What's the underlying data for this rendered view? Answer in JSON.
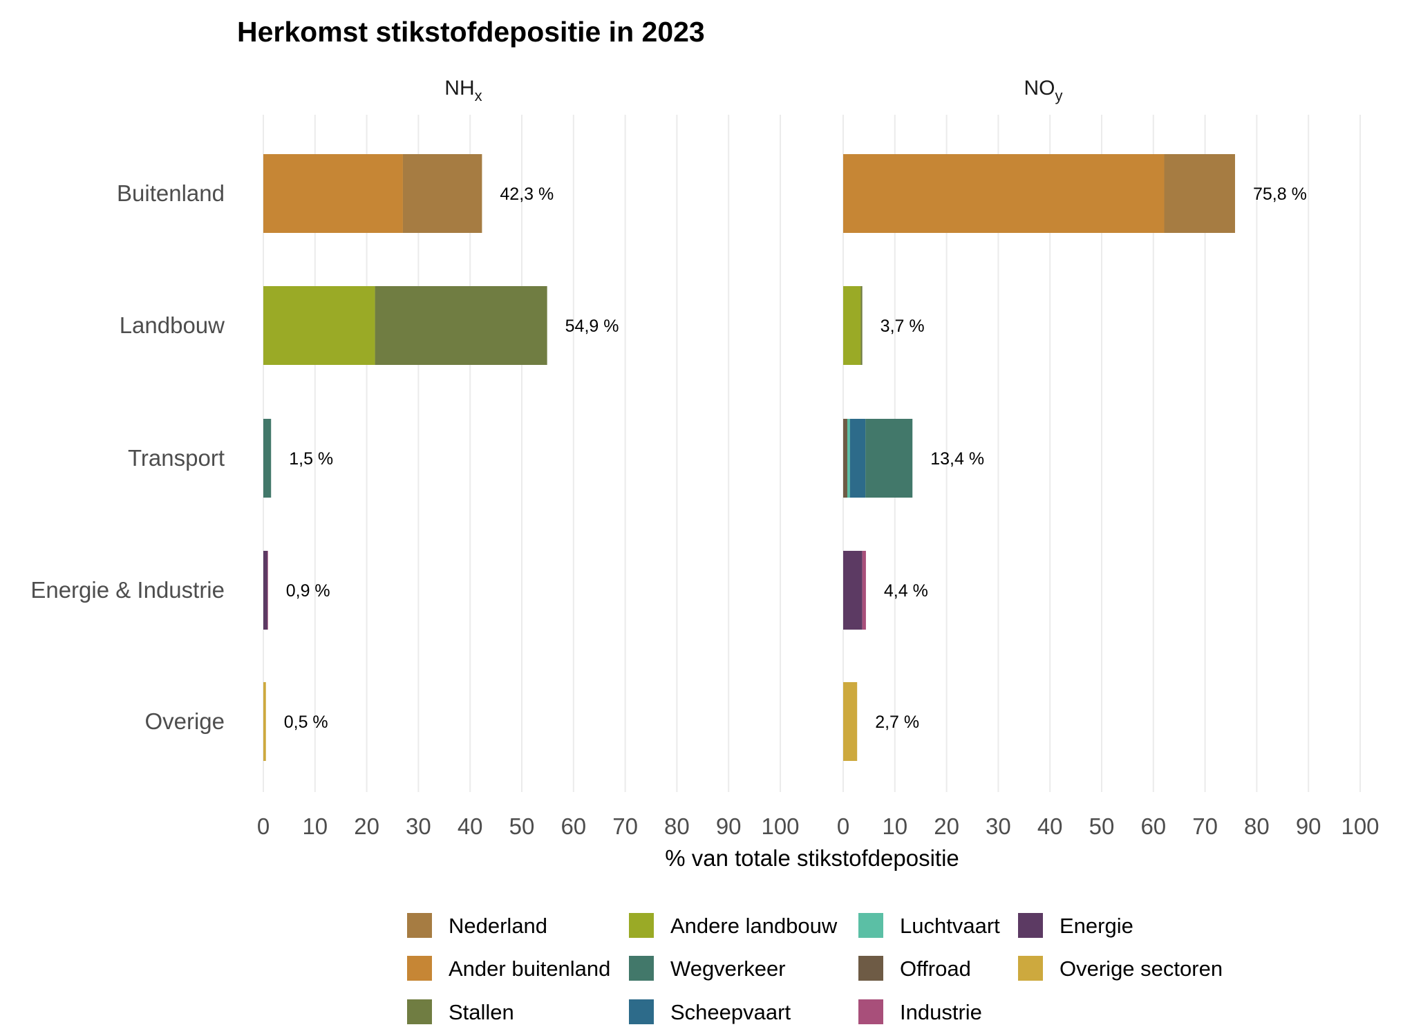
{
  "chart_data": {
    "type": "bar",
    "orientation": "horizontal",
    "stacked": true,
    "title": "Herkomst stikstofdepositie in 2023",
    "xlabel": "% van totale stikstofdepositie",
    "xlim": [
      0,
      100
    ],
    "xticks": [
      "0",
      "10",
      "20",
      "30",
      "40",
      "50",
      "60",
      "70",
      "80",
      "90",
      "100"
    ],
    "grid": true,
    "legend_placement": "bottom",
    "categories": [
      "Buitenland",
      "Landbouw",
      "Transport",
      "Energie & Industrie",
      "Overige"
    ],
    "legend": [
      {
        "name": "Nederland",
        "color": "#A67C42"
      },
      {
        "name": "Ander buitenland",
        "color": "#C68635"
      },
      {
        "name": "Stallen",
        "color": "#707D42"
      },
      {
        "name": "Andere landbouw",
        "color": "#9AAA26"
      },
      {
        "name": "Wegverkeer",
        "color": "#42786A"
      },
      {
        "name": "Scheepvaart",
        "color": "#2D6B8A"
      },
      {
        "name": "Luchtvaart",
        "color": "#5BBFA5"
      },
      {
        "name": "Offroad",
        "color": "#6E5B45"
      },
      {
        "name": "Industrie",
        "color": "#A84F7A"
      },
      {
        "name": "Energie",
        "color": "#5C3A63"
      },
      {
        "name": "Overige sectoren",
        "color": "#CDA93E"
      }
    ],
    "panels": [
      {
        "label": "NH",
        "subscript": "x",
        "bars": [
          {
            "category": "Buitenland",
            "total_label": "42,3 %",
            "segments": [
              {
                "series": "Ander buitenland",
                "value": 27.0
              },
              {
                "series": "Nederland",
                "value": 15.3
              }
            ]
          },
          {
            "category": "Landbouw",
            "total_label": "54,9 %",
            "segments": [
              {
                "series": "Andere landbouw",
                "value": 21.6
              },
              {
                "series": "Stallen",
                "value": 33.3
              }
            ]
          },
          {
            "category": "Transport",
            "total_label": "1,5 %",
            "segments": [
              {
                "series": "Wegverkeer",
                "value": 1.5
              }
            ]
          },
          {
            "category": "Energie & Industrie",
            "total_label": "0,9 %",
            "segments": [
              {
                "series": "Energie",
                "value": 0.8
              },
              {
                "series": "Industrie",
                "value": 0.1
              }
            ]
          },
          {
            "category": "Overige",
            "total_label": "0,5 %",
            "segments": [
              {
                "series": "Overige sectoren",
                "value": 0.5
              }
            ]
          }
        ]
      },
      {
        "label": "NO",
        "subscript": "y",
        "bars": [
          {
            "category": "Buitenland",
            "total_label": "75,8 %",
            "segments": [
              {
                "series": "Ander buitenland",
                "value": 62.1
              },
              {
                "series": "Nederland",
                "value": 13.7
              }
            ]
          },
          {
            "category": "Landbouw",
            "total_label": "3,7 %",
            "segments": [
              {
                "series": "Andere landbouw",
                "value": 3.4
              },
              {
                "series": "Stallen",
                "value": 0.3
              }
            ]
          },
          {
            "category": "Transport",
            "total_label": "13,4 %",
            "segments": [
              {
                "series": "Offroad",
                "value": 0.8
              },
              {
                "series": "Luchtvaart",
                "value": 0.5
              },
              {
                "series": "Scheepvaart",
                "value": 3.0
              },
              {
                "series": "Wegverkeer",
                "value": 9.1
              }
            ]
          },
          {
            "category": "Energie & Industrie",
            "total_label": "4,4 %",
            "segments": [
              {
                "series": "Energie",
                "value": 3.7
              },
              {
                "series": "Industrie",
                "value": 0.7
              }
            ]
          },
          {
            "category": "Overige",
            "total_label": "2,7 %",
            "segments": [
              {
                "series": "Overige sectoren",
                "value": 2.7
              }
            ]
          }
        ]
      }
    ]
  }
}
